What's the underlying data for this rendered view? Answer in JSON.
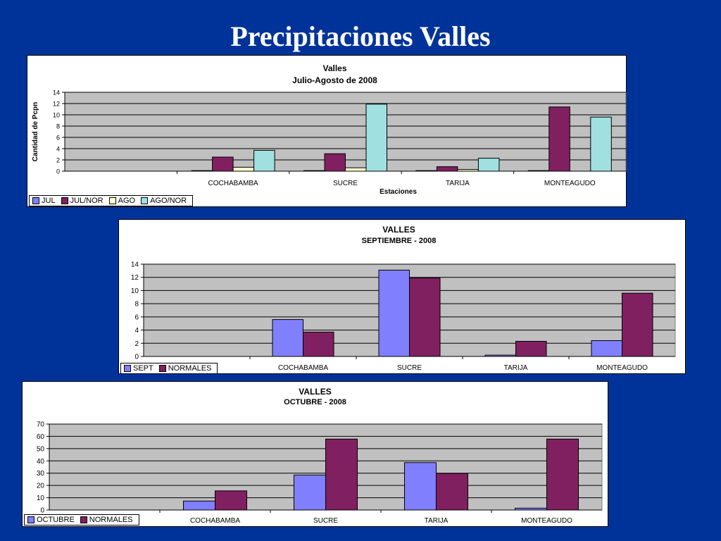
{
  "slide": {
    "title": "Precipitaciones  Valles"
  },
  "chart_data": [
    {
      "type": "bar",
      "title": "Valles",
      "subtitle": "Julio-Agosto de 2008",
      "xlabel": "Estaciones",
      "ylabel": "Cantidad de Pcpn",
      "ylim": [
        0,
        14
      ],
      "yticks": [
        0,
        2,
        4,
        6,
        8,
        10,
        12,
        14
      ],
      "grid": true,
      "legend": "bottom-left",
      "categories": [
        "",
        "COCHABAMBA",
        "SUCRE",
        "TARIJA",
        "MONTEAGUDO"
      ],
      "series": [
        {
          "name": "JUL",
          "color": "#8080ff",
          "values": [
            0,
            0.1,
            0.1,
            0.1,
            0.1
          ]
        },
        {
          "name": "JUL/NOR",
          "color": "#802060",
          "values": [
            0,
            2.5,
            3.1,
            0.8,
            11.4
          ]
        },
        {
          "name": "AGO",
          "color": "#ffffcc",
          "values": [
            0,
            0.7,
            0.6,
            0.3,
            0
          ]
        },
        {
          "name": "AGO/NOR",
          "color": "#a0e0e0",
          "values": [
            0,
            3.7,
            11.9,
            2.3,
            9.6
          ]
        }
      ]
    },
    {
      "type": "bar",
      "title": "VALLES",
      "subtitle": "SEPTIEMBRE - 2008",
      "xlabel": "",
      "ylabel": "",
      "ylim": [
        0,
        14
      ],
      "yticks": [
        0,
        2,
        4,
        6,
        8,
        10,
        12,
        14
      ],
      "grid": true,
      "legend": "bottom-left",
      "categories": [
        "",
        "COCHABAMBA",
        "SUCRE",
        "TARIJA",
        "MONTEAGUDO"
      ],
      "series": [
        {
          "name": "SEPT",
          "color": "#8080ff",
          "values": [
            0,
            5.6,
            13.1,
            0.2,
            2.4
          ]
        },
        {
          "name": "NORMALES",
          "color": "#802060",
          "values": [
            0,
            3.7,
            11.9,
            2.3,
            9.6
          ]
        }
      ]
    },
    {
      "type": "bar",
      "title": "VALLES",
      "subtitle": "OCTUBRE - 2008",
      "xlabel": "",
      "ylabel": "",
      "ylim": [
        0,
        70
      ],
      "yticks": [
        0,
        10,
        20,
        30,
        40,
        50,
        60,
        70
      ],
      "grid": true,
      "legend": "bottom-left",
      "categories": [
        "",
        "COCHABAMBA",
        "SUCRE",
        "TARIJA",
        "MONTEAGUDO"
      ],
      "series": [
        {
          "name": "OCTUBRE",
          "color": "#8080ff",
          "values": [
            0,
            7.3,
            28.5,
            38.6,
            1.5
          ]
        },
        {
          "name": "NORMALES",
          "color": "#802060",
          "values": [
            0,
            15.6,
            57.8,
            29.8,
            57.8
          ]
        }
      ]
    }
  ]
}
